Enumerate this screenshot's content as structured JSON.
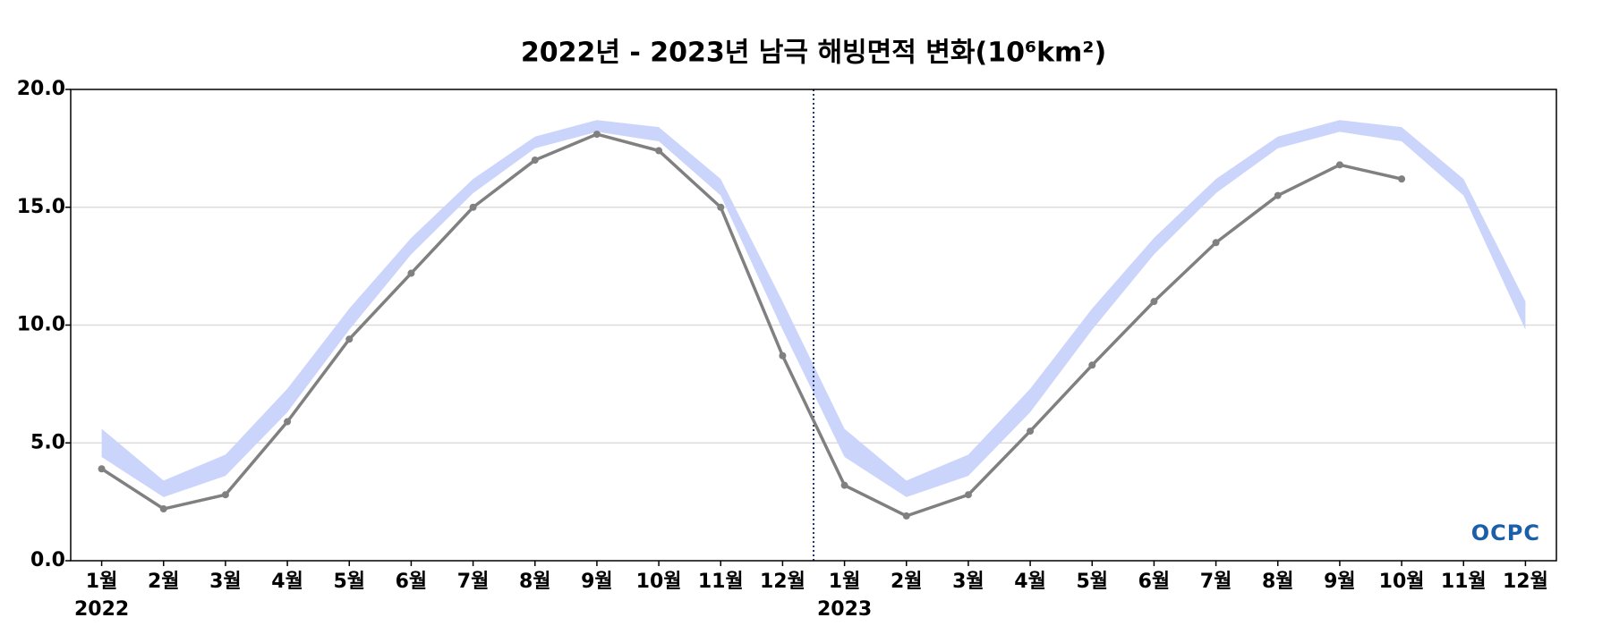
{
  "chart_data": {
    "type": "line",
    "title": "2022년 - 2023년 남극 해빙면적 변화(10⁶km²)",
    "categories": [
      "1월",
      "2월",
      "3월",
      "4월",
      "5월",
      "6월",
      "7월",
      "8월",
      "9월",
      "10월",
      "11월",
      "12월",
      "1월",
      "2월",
      "3월",
      "4월",
      "5월",
      "6월",
      "7월",
      "8월",
      "9월",
      "10월",
      "11월",
      "12월"
    ],
    "year_labels": [
      "2022",
      "2023"
    ],
    "series": [
      {
        "color": "#808080",
        "values": [
          3.9,
          2.2,
          2.8,
          5.9,
          9.4,
          12.2,
          15.0,
          17.0,
          18.1,
          17.4,
          15.0,
          8.7,
          3.2,
          1.9,
          2.8,
          5.5,
          8.3,
          11.0,
          13.5,
          15.5,
          16.8,
          16.2,
          null,
          null
        ]
      }
    ],
    "band": {
      "color": "#cbd5fb",
      "high": [
        5.6,
        3.4,
        4.5,
        7.3,
        10.7,
        13.7,
        16.2,
        18.0,
        18.7,
        18.4,
        16.2,
        11.0,
        5.6,
        3.4,
        4.5,
        7.3,
        10.7,
        13.7,
        16.2,
        18.0,
        18.7,
        18.4,
        16.2,
        11.0
      ],
      "low": [
        4.4,
        2.7,
        3.6,
        6.3,
        9.8,
        13.0,
        15.6,
        17.5,
        18.2,
        17.8,
        15.5,
        9.8,
        4.4,
        2.7,
        3.6,
        6.3,
        9.8,
        13.0,
        15.6,
        17.5,
        18.2,
        17.8,
        15.5,
        9.8
      ]
    },
    "ylim": [
      0,
      20
    ],
    "yticks": [
      {
        "value": 0,
        "label": "0.0"
      },
      {
        "value": 5,
        "label": "5.0"
      },
      {
        "value": 10,
        "label": "10.0"
      },
      {
        "value": 15,
        "label": "15.0"
      },
      {
        "value": 20,
        "label": "20.0"
      }
    ],
    "grid": true,
    "watermark": "OCPC"
  }
}
